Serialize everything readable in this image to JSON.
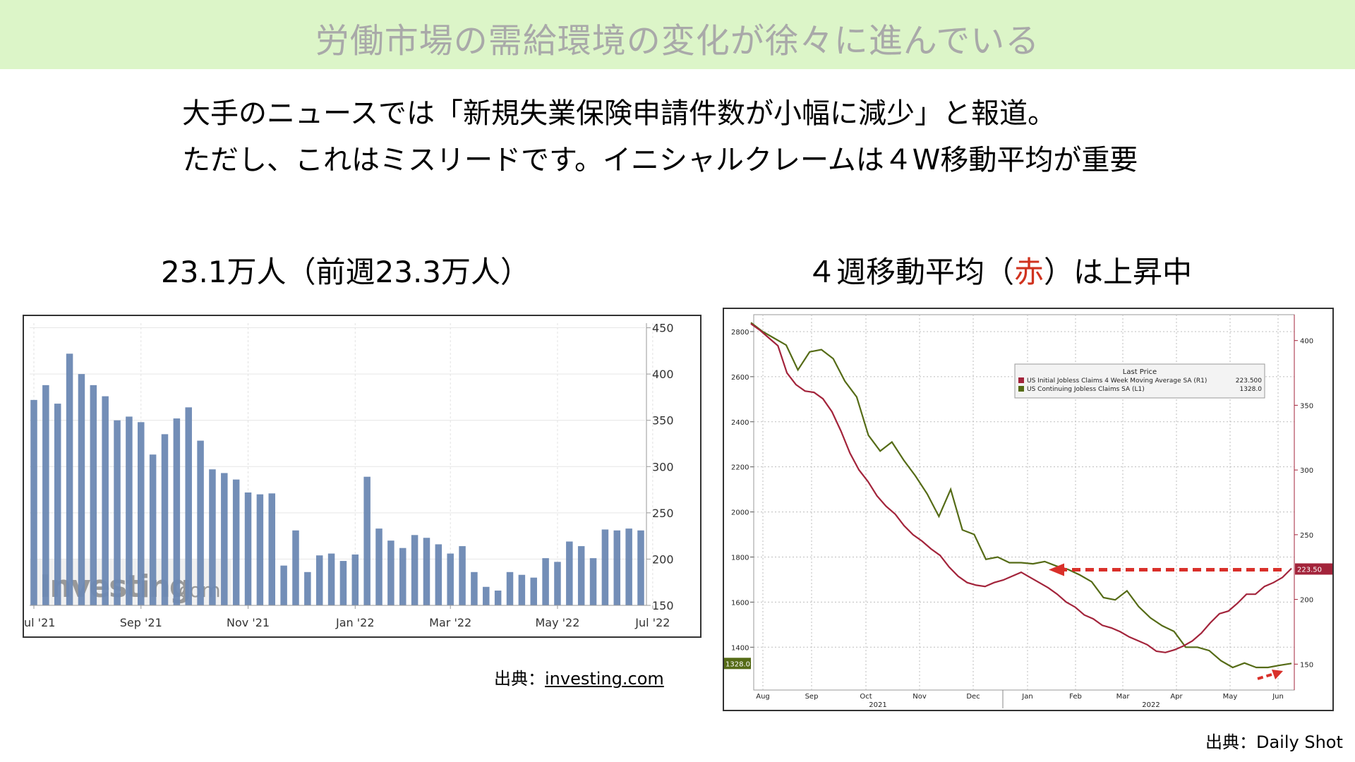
{
  "header": {
    "title": "労働市場の需給環境の変化が徐々に進んでいる"
  },
  "intro": {
    "line1": "大手のニュースでは「新規失業保険申請件数が小幅に減少」と報道。",
    "line2": "ただし、これはミスリードです。イニシャルクレームは４W移動平均が重要"
  },
  "left": {
    "subtitle": "23.1万人（前週23.3万人）",
    "source_prefix": "出典：",
    "source_link": "investing.com"
  },
  "right": {
    "subtitle_before": "４週移動平均（",
    "subtitle_red": "赤",
    "subtitle_after": "）は上昇中",
    "source": "出典：Daily Shot"
  },
  "colors": {
    "banner_bg": "#dcf5c8",
    "bar": "#6b88b3",
    "ma_line": "#a3243b",
    "continuing_line": "#556b16",
    "arrow": "#d9302a"
  },
  "chart_data": [
    {
      "type": "bar",
      "watermark": "Investing.com",
      "x_tick_labels": [
        "ul '21",
        "Sep '21",
        "Nov '21",
        "Jan '22",
        "Mar '22",
        "May '22",
        "Jul '22"
      ],
      "y_ticks": [
        150,
        200,
        250,
        300,
        350,
        400,
        450
      ],
      "ylim": [
        150,
        455
      ],
      "values": [
        372,
        388,
        368,
        422,
        400,
        388,
        376,
        350,
        354,
        348,
        313,
        335,
        352,
        364,
        328,
        297,
        293,
        286,
        272,
        270,
        271,
        193,
        231,
        186,
        204,
        206,
        198,
        205,
        289,
        233,
        220,
        212,
        226,
        223,
        216,
        206,
        214,
        186,
        170,
        166,
        186,
        183,
        180,
        201,
        197,
        219,
        214,
        201,
        232,
        231,
        233,
        231
      ]
    },
    {
      "type": "line",
      "legend": {
        "title": "Last Price",
        "entries": [
          {
            "label": "US Initial Jobless Claims 4 Week Moving Average SA  (R1)",
            "value": "223.500"
          },
          {
            "label": "US Continuing Jobless Claims SA  (L1)",
            "value": "1328.0"
          }
        ]
      },
      "x_tick_labels": [
        "Aug",
        "Sep",
        "Oct",
        "Nov",
        "Dec",
        "Jan",
        "Feb",
        "Mar",
        "Apr",
        "May",
        "Jun"
      ],
      "x_year_labels": [
        "2021",
        "2022"
      ],
      "left_y_ticks": [
        1400,
        1600,
        1800,
        2000,
        2200,
        2400,
        2600,
        2800
      ],
      "left_ylim": [
        1210,
        2875
      ],
      "right_y_ticks": [
        150,
        200,
        250,
        300,
        350,
        400
      ],
      "right_ylim": [
        130,
        420
      ],
      "last_value_labels": {
        "right": "223.50",
        "left": "1328.0"
      },
      "series": [
        {
          "name": "US Initial Jobless Claims 4 Week Moving Average SA  (R1)",
          "axis": "right",
          "values": [
            413,
            408,
            402,
            396,
            375,
            366,
            361,
            360,
            355,
            345,
            330,
            313,
            300,
            291,
            280,
            272,
            266,
            257,
            250,
            245,
            239,
            234,
            225,
            218,
            213,
            211,
            210,
            213,
            215,
            218,
            221,
            217,
            213,
            209,
            204,
            198,
            194,
            188,
            185,
            180,
            178,
            175,
            171,
            168,
            165,
            160,
            159,
            161,
            164,
            168,
            174,
            182,
            189,
            191,
            197,
            204,
            204,
            210,
            213,
            217,
            224
          ]
        },
        {
          "name": "US Continuing Jobless Claims SA  (L1)",
          "axis": "left",
          "values": [
            2840,
            2800,
            2770,
            2740,
            2630,
            2710,
            2720,
            2680,
            2580,
            2510,
            2340,
            2270,
            2310,
            2230,
            2160,
            2080,
            1980,
            2100,
            1920,
            1900,
            1790,
            1800,
            1775,
            1775,
            1770,
            1780,
            1760,
            1745,
            1720,
            1690,
            1620,
            1610,
            1650,
            1580,
            1530,
            1495,
            1470,
            1400,
            1400,
            1385,
            1340,
            1310,
            1330,
            1310,
            1310,
            1320,
            1328
          ]
        }
      ]
    }
  ]
}
